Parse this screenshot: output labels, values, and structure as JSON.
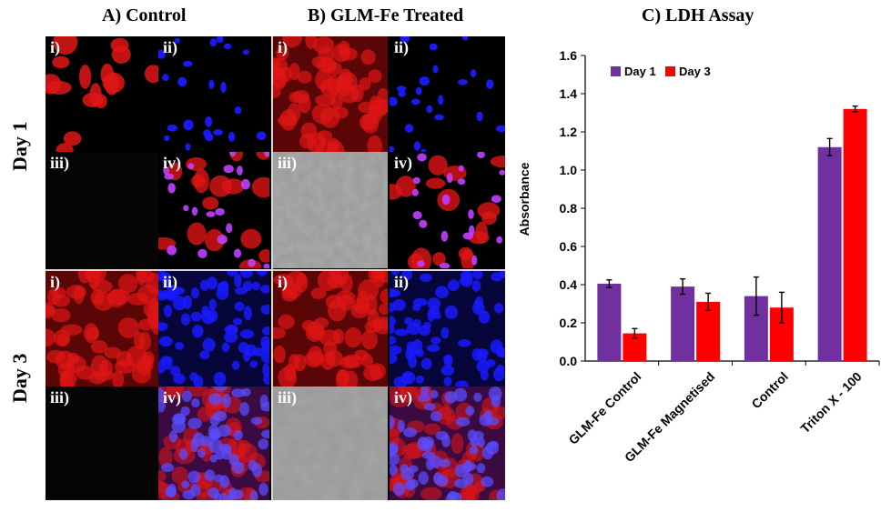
{
  "figure": {
    "panel_a_title": "A) Control",
    "panel_b_title": "B) GLM-Fe Treated",
    "panel_c_title": "C) LDH Assay",
    "row_labels": [
      "Day 1",
      "Day 3"
    ],
    "tile_labels": [
      "i)",
      "ii)",
      "iii)",
      "iv)"
    ]
  },
  "colors": {
    "red_stain": "#e01515",
    "blue_stain": "#1a1aff",
    "day1_bar": "#7030a0",
    "day3_bar": "#ff0000"
  },
  "chart_data": {
    "type": "bar",
    "title": "C) LDH Assay",
    "xlabel": "",
    "ylabel": "Absorbance",
    "categories": [
      "GLM-Fe Control",
      "GLM-Fe Magnetised",
      "Control",
      "Triton X - 100"
    ],
    "series": [
      {
        "name": "Day 1",
        "values": [
          0.405,
          0.39,
          0.34,
          1.12
        ],
        "errors": [
          0.02,
          0.04,
          0.1,
          0.045
        ]
      },
      {
        "name": "Day 3",
        "values": [
          0.145,
          0.31,
          0.28,
          1.32
        ],
        "errors": [
          0.025,
          0.045,
          0.08,
          0.015
        ]
      }
    ],
    "ylim": [
      0,
      1.6
    ],
    "yticks": [
      "0.0",
      "0.2",
      "0.4",
      "0.6",
      "0.8",
      "1.0",
      "1.2",
      "1.4",
      "1.6"
    ],
    "legend_position": "top-left",
    "grid": false
  }
}
